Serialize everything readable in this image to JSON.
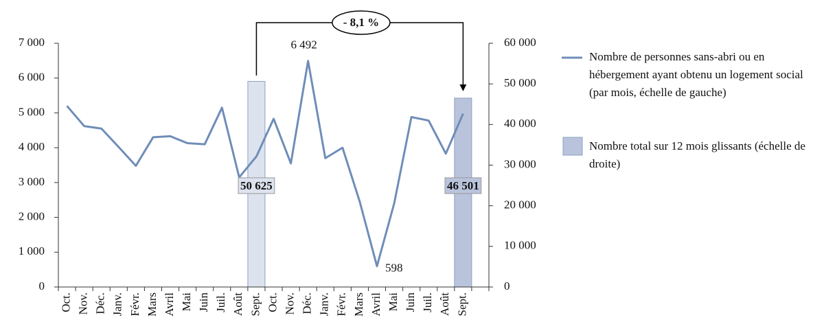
{
  "chart_data": {
    "type": "line-bar",
    "categories": [
      "Oct.",
      "Nov.",
      "Déc.",
      "Janv.",
      "Févr.",
      "Mars",
      "Avril",
      "Mai",
      "Juin",
      "Juil.",
      "Août",
      "Sept.",
      "Oct.",
      "Nov.",
      "Déc.",
      "Janv.",
      "Févr.",
      "Mars",
      "Avril",
      "Mai",
      "Juin",
      "Juil.",
      "Août",
      "Sept.",
      null
    ],
    "series": [
      {
        "name": "Nombre de personnes sans-abri ou en hébergement ayant obtenu un logement social (par mois, échelle de gauche)",
        "type": "line",
        "color": "#6f8db8",
        "values": [
          5200,
          4620,
          4550,
          4020,
          3480,
          4300,
          4330,
          4130,
          4100,
          5150,
          3150,
          3750,
          4830,
          3550,
          6492,
          3700,
          4000,
          2450,
          598,
          2400,
          4880,
          4780,
          3830,
          4980,
          null
        ],
        "value_labels": [
          null,
          null,
          null,
          null,
          null,
          null,
          null,
          null,
          null,
          null,
          null,
          null,
          null,
          null,
          "6 492",
          null,
          null,
          null,
          "598",
          null,
          null,
          null,
          null,
          null,
          null
        ]
      },
      {
        "name": "Nombre total sur 12 mois glissants (échelle de droite)",
        "type": "bar",
        "axis": "y2",
        "color": "#b9c4dc",
        "colors": [
          null,
          null,
          null,
          null,
          null,
          null,
          null,
          null,
          null,
          null,
          null,
          "#dce3ef",
          null,
          null,
          null,
          null,
          null,
          null,
          null,
          null,
          null,
          null,
          null,
          "#b9c4dc",
          null
        ],
        "values": [
          null,
          null,
          null,
          null,
          null,
          null,
          null,
          null,
          null,
          null,
          null,
          50625,
          null,
          null,
          null,
          null,
          null,
          null,
          null,
          null,
          null,
          null,
          null,
          46501,
          null
        ],
        "value_labels": [
          null,
          null,
          null,
          null,
          null,
          null,
          null,
          null,
          null,
          null,
          null,
          "50 625",
          null,
          null,
          null,
          null,
          null,
          null,
          null,
          null,
          null,
          null,
          null,
          "46 501",
          null
        ]
      }
    ],
    "annotation": "- 8,1 %",
    "ylim": [
      0,
      7000
    ],
    "yticks": [
      0,
      {
        "value": 1000,
        "label": "1 000"
      },
      {
        "value": 2000,
        "label": "2 000"
      },
      {
        "value": 3000,
        "label": "3 000"
      },
      {
        "value": 4000,
        "label": "4 000"
      },
      {
        "value": 5000,
        "label": "5 000"
      },
      {
        "value": 6000,
        "label": "6 000"
      },
      {
        "value": 7000,
        "label": "7 000"
      }
    ],
    "y2lim": [
      0,
      60000
    ],
    "y2ticks": [
      0,
      {
        "value": 10000,
        "label": "10 000"
      },
      {
        "value": 20000,
        "label": "20 000"
      },
      {
        "value": 30000,
        "label": "30 000"
      },
      {
        "value": 40000,
        "label": "40 000"
      },
      {
        "value": 50000,
        "label": "50 000"
      },
      {
        "value": 60000,
        "label": "60 000"
      }
    ],
    "grid": false
  }
}
